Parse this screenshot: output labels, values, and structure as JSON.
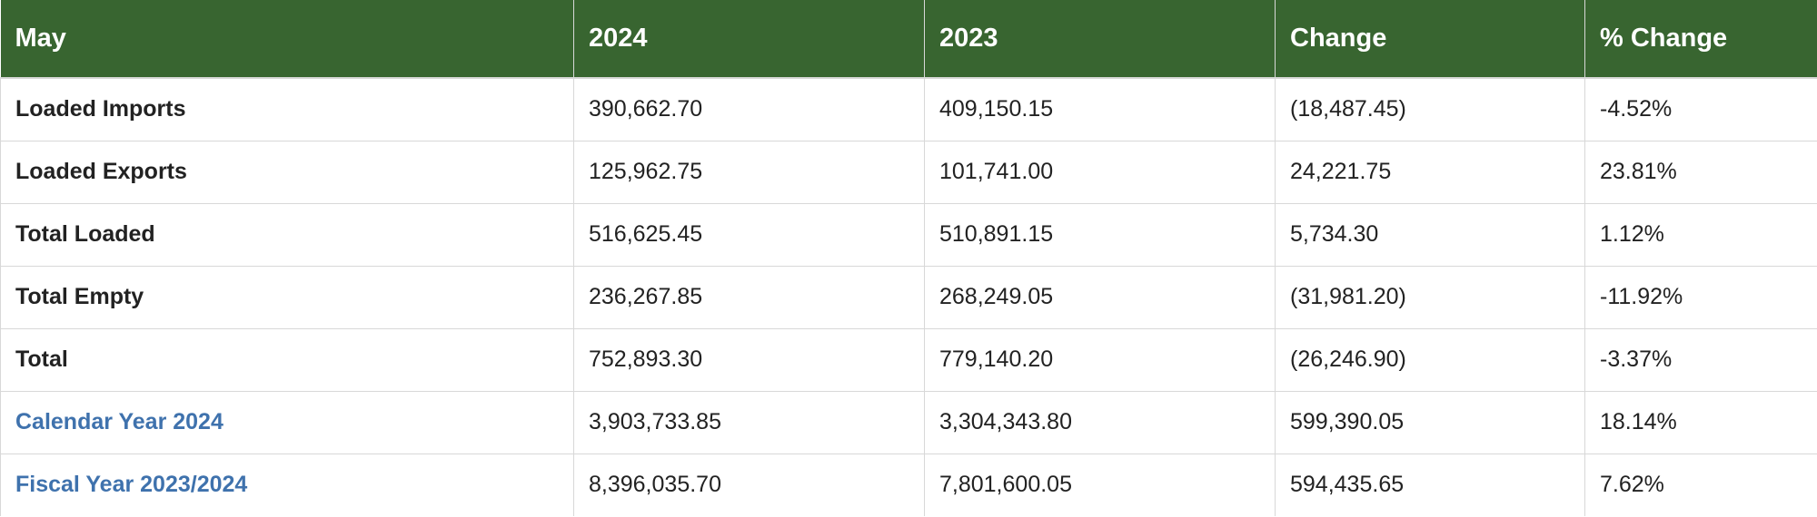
{
  "header": {
    "columns": [
      "May",
      "2024",
      "2023",
      "Change",
      "% Change"
    ]
  },
  "rows": [
    {
      "label": "Loaded Imports",
      "y2024": "390,662.70",
      "y2023": "409,150.15",
      "change": "(18,487.45)",
      "pct": "-4.52%"
    },
    {
      "label": "Loaded Exports",
      "y2024": "125,962.75",
      "y2023": "101,741.00",
      "change": "24,221.75",
      "pct": "23.81%"
    },
    {
      "label": "Total Loaded",
      "y2024": "516,625.45",
      "y2023": "510,891.15",
      "change": "5,734.30",
      "pct": "1.12%"
    },
    {
      "label": "Total Empty",
      "y2024": "236,267.85",
      "y2023": "268,249.05",
      "change": "(31,981.20)",
      "pct": "-11.92%"
    },
    {
      "label": "Total",
      "y2024": "752,893.30",
      "y2023": "779,140.20",
      "change": "(26,246.90)",
      "pct": "-3.37%"
    },
    {
      "label": "Calendar Year 2024",
      "y2024": "3,903,733.85",
      "y2023": "3,304,343.80",
      "change": "599,390.05",
      "pct": "18.14%"
    },
    {
      "label": "Fiscal Year 2023/2024",
      "y2024": "8,396,035.70",
      "y2023": "7,801,600.05",
      "change": "594,435.65",
      "pct": "7.62%"
    }
  ],
  "colors": {
    "header_bg": "#386530",
    "header_text": "#ffffff",
    "link": "#3f72ad",
    "border": "#d8d8d8"
  }
}
